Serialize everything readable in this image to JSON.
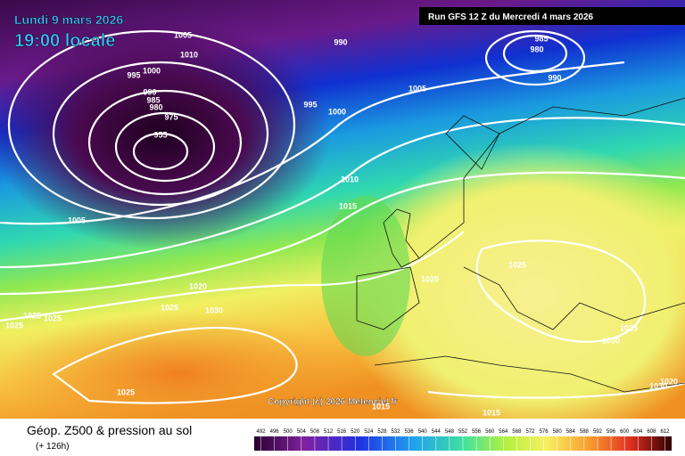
{
  "header": {
    "date": "Lundi 9 mars 2026",
    "time": "19:00 locale",
    "run": "Run GFS 12 Z du Mercredi 4 mars 2026"
  },
  "isobar_labels": [
    "1005",
    "1010",
    "995",
    "1000",
    "990",
    "985",
    "980",
    "975",
    "955",
    "990",
    "995",
    "1000",
    "1005",
    "985",
    "980",
    "990",
    "1010",
    "1015",
    "1005",
    "1020",
    "1025",
    "1030",
    "1025",
    "1025",
    "1025",
    "1020",
    "1025",
    "1035",
    "1030",
    "1020",
    "1030",
    "1025",
    "1015",
    "1015"
  ],
  "copyright": "Copyright (c) 2026 Meteociel.fr",
  "footer": {
    "title": "Géop. Z500 & pression au sol",
    "lead": "(+ 126h)"
  },
  "colorbar": {
    "ticks": [
      492,
      496,
      500,
      504,
      508,
      512,
      516,
      520,
      524,
      528,
      532,
      536,
      540,
      544,
      548,
      552,
      556,
      560,
      564,
      568,
      572,
      576,
      580,
      584,
      588,
      592,
      596,
      600,
      604,
      608,
      612
    ]
  }
}
